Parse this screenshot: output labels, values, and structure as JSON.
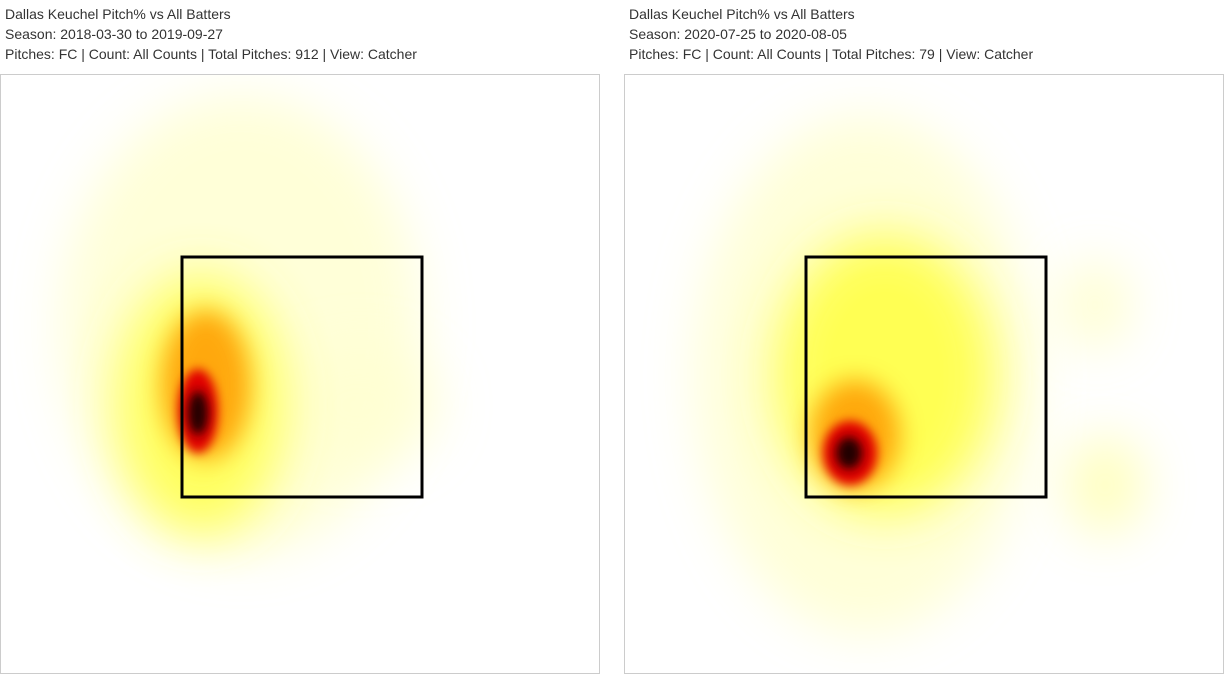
{
  "panels": [
    {
      "title": "Dallas Keuchel Pitch% vs All Batters",
      "season": "Season: 2018-03-30 to 2019-09-27",
      "details": "Pitches: FC | Count: All Counts | Total Pitches: 912 | View: Catcher"
    },
    {
      "title": "Dallas Keuchel Pitch% vs All Batters",
      "season": "Season: 2020-07-25 to 2020-08-05",
      "details": "Pitches: FC | Count: All Counts | Total Pitches: 79 | View: Catcher"
    }
  ]
}
